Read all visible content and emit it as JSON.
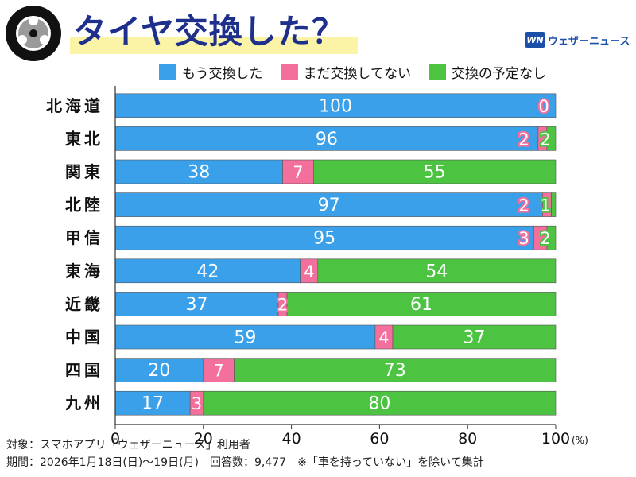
{
  "header": {
    "title": "タイヤ交換した？",
    "brand_logo": "WN",
    "brand_name": "ウェザーニュース"
  },
  "colors": {
    "done": "#3aa0ea",
    "not_yet": "#f36f9c",
    "no_plan": "#4cc441",
    "title": "#1f2f8c",
    "title_band": "#fbf3a6"
  },
  "chart_data": {
    "type": "bar",
    "orientation": "horizontal",
    "stacked": true,
    "categories": [
      "北海道",
      "東北",
      "関東",
      "北陸",
      "甲信",
      "東海",
      "近畿",
      "中国",
      "四国",
      "九州"
    ],
    "series": [
      {
        "name": "もう交換した",
        "values": [
          100,
          96,
          38,
          97,
          95,
          42,
          37,
          59,
          20,
          17
        ]
      },
      {
        "name": "まだ交換してない",
        "values": [
          0,
          2,
          7,
          2,
          3,
          4,
          2,
          4,
          7,
          3
        ]
      },
      {
        "name": "交換の予定なし",
        "values": [
          0,
          2,
          55,
          1,
          2,
          54,
          61,
          37,
          73,
          80
        ]
      }
    ],
    "xlim": [
      0,
      100
    ],
    "xticks": [
      "0",
      "20",
      "40",
      "60",
      "80",
      "100"
    ],
    "x_unit": "(%)",
    "legend_position": "top"
  },
  "footer": {
    "line1": "対象：スマホアプリ「ウェザーニュース」利用者",
    "line2": "期間：2026年1月18日(日)～19日(月)　回答数：9,477　※「車を持っていない」を除いて集計"
  }
}
